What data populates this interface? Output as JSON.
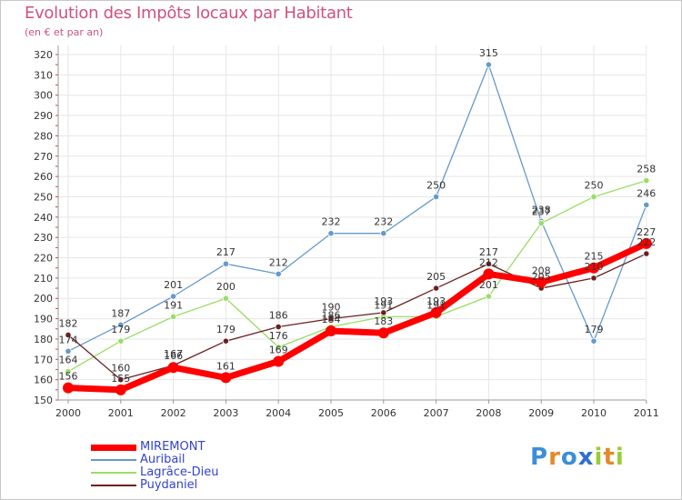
{
  "header": {
    "title": "Evolution des Impôts locaux par Habitant",
    "subtitle": "(en € et par an)"
  },
  "logo": {
    "text": "Proxiti",
    "letters": [
      "P",
      "r",
      "o",
      "x",
      "i",
      "t",
      "i"
    ],
    "colors": [
      "#3a8fd8",
      "#e38a2a",
      "#3a8fd8",
      "#2f6fd0",
      "#9acd32",
      "#e38a2a",
      "#9acd32"
    ]
  },
  "chart_data": {
    "type": "line",
    "title": "Evolution des Impôts locaux par Habitant",
    "subtitle": "(en € et par an)",
    "xlabel": "",
    "ylabel": "",
    "x": [
      "2000",
      "2001",
      "2002",
      "2003",
      "2004",
      "2005",
      "2006",
      "2007",
      "2008",
      "2009",
      "2010",
      "2011"
    ],
    "ylim": [
      150,
      320
    ],
    "yticks": [
      150,
      160,
      170,
      180,
      190,
      200,
      210,
      220,
      230,
      240,
      250,
      260,
      270,
      280,
      290,
      300,
      310,
      320
    ],
    "grid": true,
    "legend_position": "bottom-left",
    "series": [
      {
        "name": "MIREMONT",
        "color": "#ff0000",
        "values": [
          156,
          155,
          166,
          161,
          169,
          184,
          183,
          193,
          212,
          208,
          215,
          227
        ]
      },
      {
        "name": "Auribail",
        "color": "#6699cc",
        "values": [
          174,
          187,
          201,
          217,
          212,
          232,
          232,
          250,
          315,
          238,
          179,
          246
        ]
      },
      {
        "name": "Lagrâce-Dieu",
        "color": "#99dd66",
        "values": [
          164,
          179,
          191,
          200,
          176,
          186,
          191,
          191,
          201,
          237,
          250,
          258
        ]
      },
      {
        "name": "Puydaniel",
        "color": "#6b1f1f",
        "values": [
          182,
          160,
          167,
          179,
          186,
          190,
          193,
          205,
          217,
          205,
          210,
          222
        ]
      }
    ]
  }
}
